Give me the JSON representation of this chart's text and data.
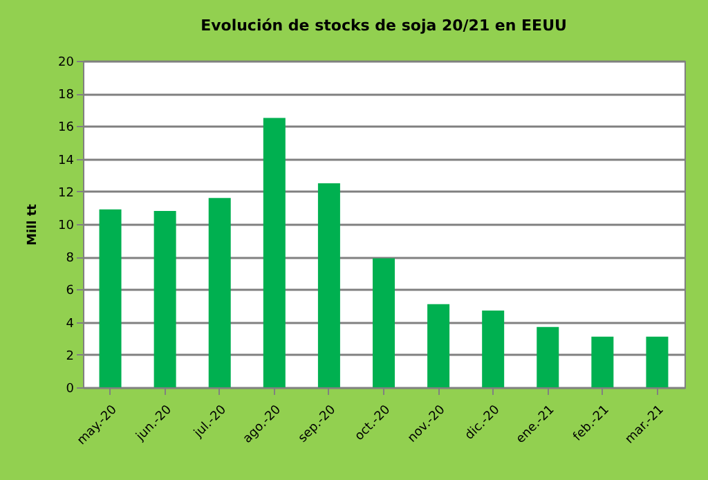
{
  "chart_data": {
    "type": "bar",
    "title": "Evolución de stocks de soja 20/21 en EEUU",
    "ylabel": "Mill tt",
    "categories": [
      "may.-20",
      "jun.-20",
      "jul.-20",
      "ago.-20",
      "sep.-20",
      "oct.-20",
      "nov.-20",
      "dic.-20",
      "ene.-21",
      "feb.-21",
      "mar.-21"
    ],
    "values": [
      10.9,
      10.8,
      11.6,
      16.5,
      12.5,
      7.9,
      5.1,
      4.7,
      3.7,
      3.1,
      3.1
    ],
    "color": "#00b050",
    "ylim": [
      0,
      20
    ],
    "yticks": [
      0,
      2,
      4,
      6,
      8,
      10,
      12,
      14,
      16,
      18,
      20
    ],
    "grid": true
  }
}
